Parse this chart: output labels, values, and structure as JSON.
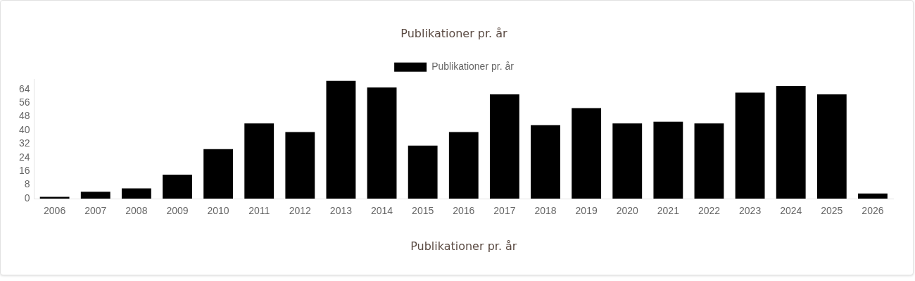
{
  "chart_data": {
    "type": "bar",
    "title": "Publikationer pr. år",
    "xlabel": "Publikationer pr. år",
    "categories": [
      "2006",
      "2007",
      "2008",
      "2009",
      "2010",
      "2011",
      "2012",
      "2013",
      "2014",
      "2015",
      "2016",
      "2017",
      "2018",
      "2019",
      "2020",
      "2021",
      "2022",
      "2023",
      "2024",
      "2025",
      "2026"
    ],
    "series": [
      {
        "name": "Publikationer pr. år",
        "color": "#000000",
        "values": [
          1,
          4,
          6,
          14,
          29,
          44,
          39,
          69,
          65,
          31,
          39,
          61,
          43,
          53,
          44,
          45,
          44,
          62,
          66,
          61,
          3
        ]
      }
    ],
    "ylim": [
      0,
      70
    ],
    "yticks": [
      0,
      8,
      16,
      24,
      32,
      40,
      48,
      56,
      64
    ],
    "grid": false,
    "legend": "top"
  }
}
